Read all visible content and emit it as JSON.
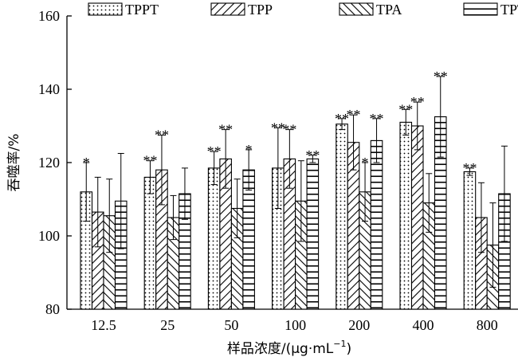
{
  "chart_data": {
    "type": "bar",
    "xlabel_main": "样品浓度/(μg·mL",
    "xlabel_sup": "−1",
    "xlabel_close": ")",
    "ylabel": "吞噬率/%",
    "ylim": [
      80,
      160
    ],
    "yticks": [
      80,
      100,
      120,
      140,
      160
    ],
    "categories": [
      "12.5",
      "25",
      "50",
      "100",
      "200",
      "400",
      "800"
    ],
    "series": [
      {
        "name": "TPPT",
        "pattern": "dots",
        "values": [
          112,
          116,
          118.5,
          118.5,
          130.5,
          131,
          117.5
        ],
        "errors": [
          8,
          4.5,
          4.5,
          11,
          1.5,
          3.5,
          1
        ],
        "sig": [
          "*",
          "**",
          "**",
          "**",
          "**",
          "**",
          "**"
        ]
      },
      {
        "name": "TPP",
        "pattern": "diagonal-up",
        "values": [
          106.5,
          118,
          121,
          121,
          125.5,
          130,
          105
        ],
        "errors": [
          9.5,
          9.5,
          8,
          8,
          7.5,
          6.5,
          9.5
        ],
        "sig": [
          "",
          "**",
          "**",
          "**",
          "**",
          "**",
          ""
        ]
      },
      {
        "name": "TPA",
        "pattern": "diagonal-down",
        "values": [
          105.5,
          105,
          107.5,
          109.5,
          112,
          109,
          97.5
        ],
        "errors": [
          10,
          6,
          8,
          11,
          8,
          8,
          11.5
        ],
        "sig": [
          "",
          "",
          "",
          "",
          "*",
          "",
          ""
        ]
      },
      {
        "name": "TPT",
        "pattern": "horizontal",
        "values": [
          109.5,
          111.5,
          118,
          121,
          126,
          132.5,
          111.5
        ],
        "errors": [
          13,
          7,
          5.5,
          1,
          6,
          11,
          13
        ],
        "sig": [
          "",
          "",
          "*",
          "**",
          "**",
          "**",
          ""
        ]
      }
    ],
    "legend_position": "top",
    "grid": false
  }
}
